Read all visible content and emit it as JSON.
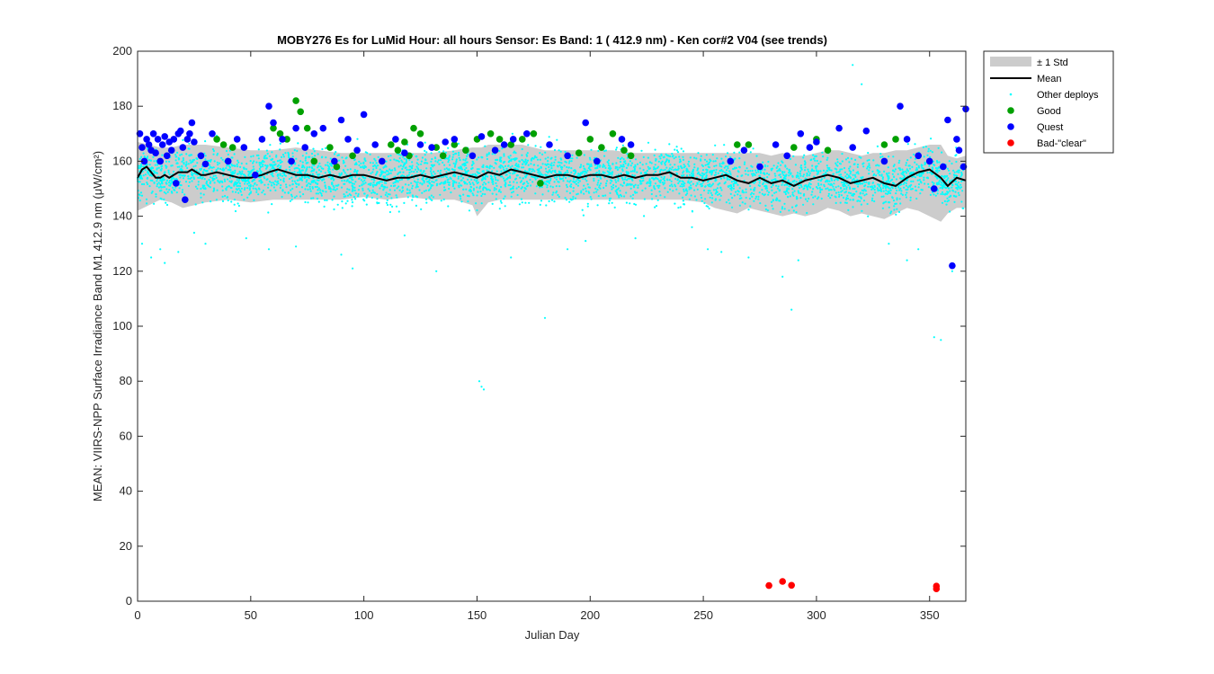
{
  "chart_data": {
    "type": "scatter",
    "title": "MOBY276   Es for LuMid  Hour: all hours  Sensor: Es Band: 1 ( 412.9 nm)  - Ken cor#2 V04 (see trends)",
    "xlabel": "Julian Day",
    "ylabel": "MEAN: VIIRS-NPP Surface Irradiance Band M1 412.9 nm (μW/cm²)",
    "xlim": [
      0,
      366
    ],
    "ylim": [
      0,
      200
    ],
    "x_ticks": [
      0,
      50,
      100,
      150,
      200,
      250,
      300,
      350
    ],
    "y_ticks": [
      0,
      20,
      40,
      60,
      80,
      100,
      120,
      140,
      160,
      180,
      200
    ],
    "grid": false,
    "legend_position": "outside-top-right",
    "legend": [
      {
        "label": "± 1 Std",
        "kind": "band",
        "color": "#cccccc"
      },
      {
        "label": "Mean",
        "kind": "line",
        "color": "#000000"
      },
      {
        "label": "Other deploys",
        "kind": "dot",
        "color": "#00ffff"
      },
      {
        "label": "Good",
        "kind": "marker",
        "color": "#00a000"
      },
      {
        "label": "Quest",
        "kind": "marker",
        "color": "#0000ff"
      },
      {
        "label": "Bad-\"clear\"",
        "kind": "marker",
        "color": "#ff0000"
      }
    ],
    "mean": {
      "x": [
        0,
        2,
        4,
        6,
        8,
        10,
        12,
        14,
        16,
        18,
        20,
        22,
        24,
        26,
        28,
        30,
        35,
        40,
        45,
        50,
        55,
        58,
        62,
        66,
        70,
        75,
        80,
        85,
        90,
        95,
        100,
        105,
        110,
        115,
        120,
        125,
        130,
        135,
        140,
        145,
        150,
        155,
        160,
        165,
        170,
        175,
        180,
        185,
        190,
        195,
        200,
        205,
        210,
        215,
        220,
        225,
        230,
        235,
        240,
        245,
        250,
        255,
        260,
        265,
        270,
        275,
        280,
        285,
        290,
        295,
        300,
        305,
        310,
        315,
        320,
        325,
        330,
        335,
        340,
        345,
        350,
        355,
        358,
        362,
        366
      ],
      "y": [
        154,
        157,
        158,
        156,
        154,
        154,
        155,
        154,
        155,
        156,
        156,
        156,
        157,
        156,
        155,
        155,
        156,
        155,
        154,
        154,
        155,
        156,
        157,
        156,
        155,
        155,
        154,
        155,
        154,
        155,
        155,
        154,
        153,
        154,
        154,
        155,
        154,
        155,
        156,
        155,
        154,
        156,
        155,
        157,
        156,
        155,
        154,
        155,
        155,
        154,
        155,
        155,
        154,
        155,
        154,
        155,
        155,
        156,
        154,
        154,
        153,
        154,
        155,
        153,
        152,
        154,
        152,
        153,
        151,
        153,
        154,
        155,
        154,
        152,
        153,
        154,
        152,
        151,
        154,
        156,
        157,
        154,
        151,
        154,
        153
      ]
    },
    "std": {
      "x": [
        0,
        5,
        10,
        15,
        20,
        25,
        30,
        40,
        50,
        60,
        70,
        80,
        90,
        100,
        110,
        120,
        130,
        140,
        148,
        150,
        152,
        155,
        160,
        170,
        180,
        190,
        200,
        210,
        220,
        230,
        240,
        250,
        255,
        260,
        265,
        270,
        275,
        280,
        285,
        290,
        295,
        300,
        305,
        310,
        315,
        320,
        325,
        330,
        335,
        340,
        345,
        350,
        355,
        358,
        362,
        366
      ],
      "upper": [
        167,
        166,
        165,
        165,
        166,
        166,
        166,
        165,
        164,
        164,
        165,
        164,
        163,
        163,
        163,
        163,
        163,
        164,
        165,
        165,
        165,
        166,
        166,
        166,
        164,
        164,
        164,
        164,
        163,
        163,
        163,
        163,
        163,
        163,
        163,
        163,
        163,
        162,
        163,
        162,
        162,
        163,
        164,
        164,
        163,
        162,
        163,
        163,
        164,
        164,
        165,
        166,
        166,
        162,
        161,
        162
      ],
      "lower": [
        142,
        144,
        146,
        145,
        143,
        144,
        145,
        146,
        145,
        146,
        146,
        146,
        146,
        147,
        146,
        147,
        146,
        146,
        144,
        140,
        142,
        145,
        146,
        146,
        146,
        146,
        146,
        146,
        146,
        146,
        146,
        145,
        143,
        142,
        141,
        143,
        142,
        141,
        140,
        141,
        140,
        141,
        143,
        142,
        140,
        141,
        140,
        139,
        141,
        143,
        142,
        140,
        138,
        141,
        143,
        143
      ]
    },
    "good": {
      "x": [
        35,
        38,
        42,
        60,
        63,
        66,
        70,
        72,
        75,
        78,
        85,
        88,
        95,
        112,
        115,
        118,
        120,
        122,
        125,
        132,
        135,
        140,
        145,
        150,
        156,
        160,
        165,
        170,
        175,
        178,
        195,
        200,
        205,
        210,
        215,
        218,
        265,
        270,
        290,
        300,
        305,
        330,
        335
      ],
      "y": [
        168,
        166,
        165,
        172,
        170,
        168,
        182,
        178,
        172,
        160,
        165,
        158,
        162,
        166,
        164,
        167,
        162,
        172,
        170,
        165,
        162,
        166,
        164,
        168,
        170,
        168,
        166,
        168,
        170,
        152,
        163,
        168,
        165,
        170,
        164,
        162,
        166,
        166,
        165,
        168,
        164,
        166,
        168
      ]
    },
    "quest": {
      "x": [
        1,
        2,
        3,
        4,
        5,
        6,
        7,
        8,
        9,
        10,
        11,
        12,
        13,
        14,
        15,
        16,
        17,
        18,
        19,
        20,
        21,
        22,
        23,
        24,
        25,
        28,
        30,
        33,
        40,
        44,
        47,
        52,
        55,
        58,
        60,
        64,
        68,
        70,
        74,
        78,
        82,
        87,
        90,
        93,
        97,
        100,
        105,
        108,
        114,
        118,
        125,
        130,
        136,
        140,
        148,
        152,
        158,
        162,
        166,
        172,
        182,
        190,
        198,
        203,
        214,
        218,
        262,
        268,
        275,
        282,
        287,
        293,
        297,
        300,
        310,
        316,
        322,
        330,
        337,
        340,
        345,
        350,
        352,
        356,
        358,
        360,
        362,
        363,
        365,
        366
      ],
      "y": [
        170,
        165,
        160,
        168,
        166,
        164,
        170,
        163,
        168,
        160,
        166,
        169,
        162,
        167,
        164,
        168,
        152,
        170,
        171,
        165,
        146,
        168,
        170,
        174,
        167,
        162,
        159,
        170,
        160,
        168,
        165,
        155,
        168,
        180,
        174,
        168,
        160,
        172,
        165,
        170,
        172,
        160,
        175,
        168,
        164,
        177,
        166,
        160,
        168,
        163,
        166,
        165,
        167,
        168,
        162,
        169,
        164,
        166,
        168,
        170,
        166,
        162,
        174,
        160,
        168,
        166,
        160,
        164,
        158,
        166,
        162,
        170,
        165,
        167,
        172,
        165,
        171,
        160,
        180,
        168,
        162,
        160,
        150,
        158,
        175,
        122,
        168,
        164,
        158,
        179
      ]
    },
    "bad_clear": {
      "x": [
        279,
        285,
        289,
        353,
        353
      ],
      "y": [
        5.7,
        7.2,
        5.8,
        5.5,
        4.5
      ]
    },
    "other_deploys": {
      "description_ref": "dense cyan scatter of ~5000 points centred on the mean with outliers down to ~78 near day 152",
      "outliers": {
        "x": [
          2,
          6,
          10,
          12,
          18,
          25,
          30,
          48,
          58,
          70,
          90,
          95,
          118,
          132,
          151,
          152,
          153,
          165,
          180,
          190,
          198,
          220,
          245,
          252,
          258,
          270,
          285,
          289,
          292,
          316,
          320,
          332,
          340,
          345,
          352,
          355,
          360
        ],
        "y": [
          130,
          125,
          128,
          123,
          127,
          134,
          130,
          132,
          128,
          129,
          126,
          121,
          133,
          120,
          80,
          78,
          77,
          125,
          103,
          128,
          131,
          132,
          136,
          128,
          127,
          125,
          118,
          106,
          124,
          195,
          188,
          130,
          124,
          128,
          96,
          95,
          120
        ]
      }
    }
  }
}
